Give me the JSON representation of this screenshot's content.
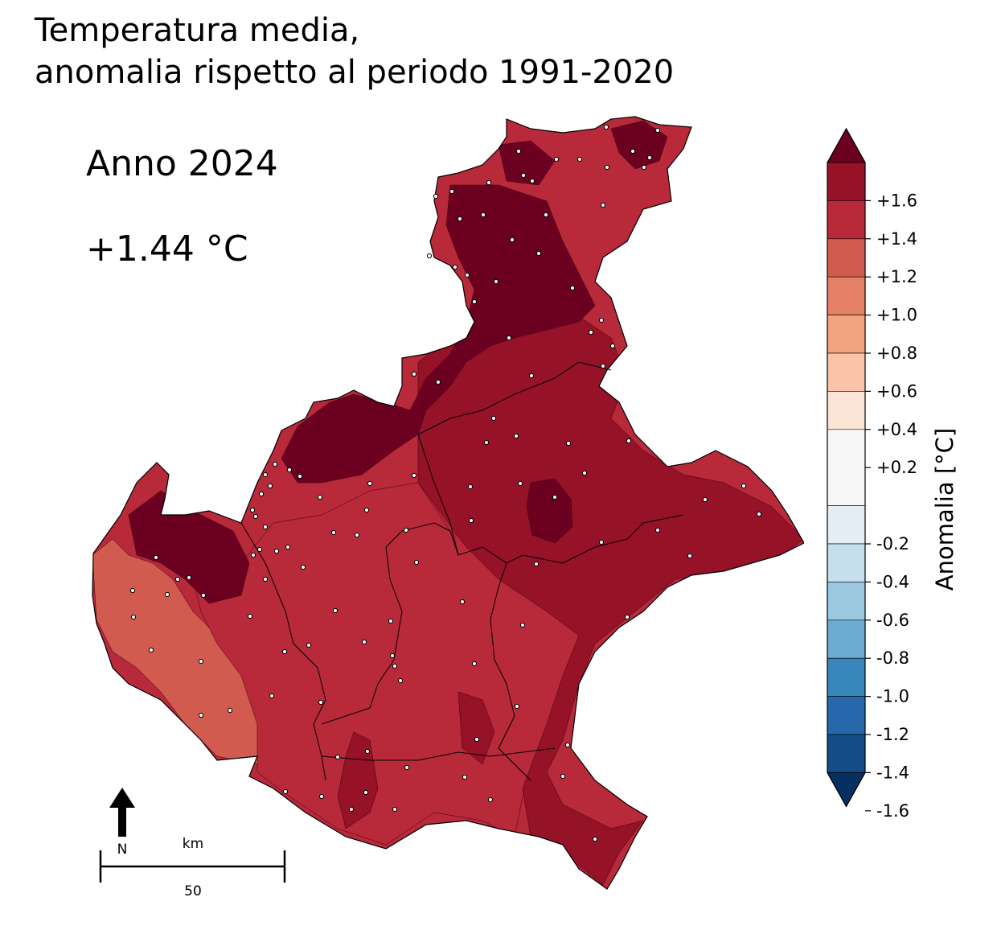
{
  "title": {
    "line1": "Temperatura media,",
    "line2": "anomalia rispetto al periodo 1991-2020"
  },
  "period_label": "Anno 2024",
  "mean_anomaly": "+1.44 °C",
  "north_arrow": {
    "label": "N",
    "icon": "north-arrow-icon"
  },
  "scale_bar": {
    "unit": "km",
    "value": "50"
  },
  "colorbar": {
    "label": "Anomalia [°C]",
    "levels": [
      {
        "color": "#053061"
      },
      {
        "color": "#134c87"
      },
      {
        "color": "#2668ab"
      },
      {
        "color": "#3885bc"
      },
      {
        "color": "#6bacd0"
      },
      {
        "color": "#9ac8e0"
      },
      {
        "color": "#c5dfec"
      },
      {
        "color": "#e4eef4"
      },
      {
        "color": "#f6f6f6"
      },
      {
        "color": "#fbe4d6"
      },
      {
        "color": "#f9c4a9"
      },
      {
        "color": "#f3a481"
      },
      {
        "color": "#e48066"
      },
      {
        "color": "#d15b4e"
      },
      {
        "color": "#b8293a"
      },
      {
        "color": "#951227"
      },
      {
        "color": "#6b0021"
      }
    ],
    "ticks": [
      {
        "label": "-1.6",
        "value": -1.6
      },
      {
        "label": "-1.4",
        "value": -1.4
      },
      {
        "label": "-1.2",
        "value": -1.2
      },
      {
        "label": "-1.0",
        "value": -1.0
      },
      {
        "label": "-0.8",
        "value": -0.8
      },
      {
        "label": "-0.6",
        "value": -0.6
      },
      {
        "label": "-0.4",
        "value": -0.4
      },
      {
        "label": "-0.2",
        "value": -0.2
      },
      {
        "label": "+0.2",
        "value": 0.2
      },
      {
        "label": "+0.4",
        "value": 0.4
      },
      {
        "label": "+0.6",
        "value": 0.6
      },
      {
        "label": "+0.8",
        "value": 0.8
      },
      {
        "label": "+1.0",
        "value": 1.0
      },
      {
        "label": "+1.2",
        "value": 1.2
      },
      {
        "label": "+1.4",
        "value": 1.4
      },
      {
        "label": "+1.6",
        "value": 1.6
      }
    ]
  },
  "map_colors": {
    "c10": "#d15b4e",
    "c12": "#b8293a",
    "c14": "#951227",
    "c16": "#6b0021",
    "border": "#000000",
    "station": "#ffffff"
  }
}
